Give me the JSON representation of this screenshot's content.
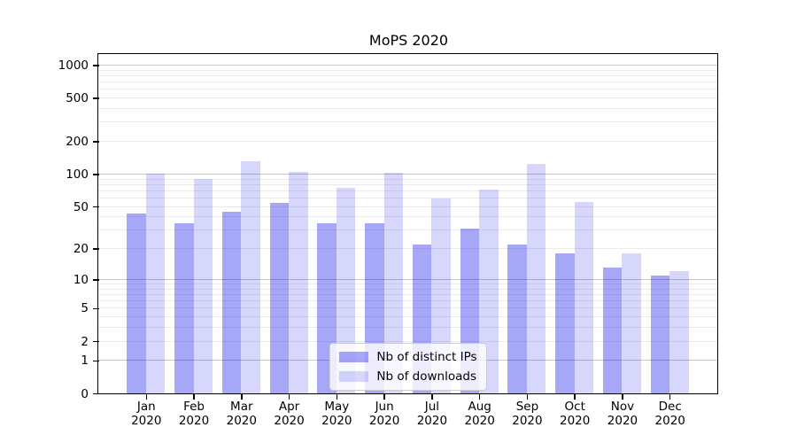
{
  "chart_data": {
    "type": "bar",
    "title": "MoPS 2020",
    "categories": [
      "Jan",
      "Feb",
      "Mar",
      "Apr",
      "May",
      "Jun",
      "Jul",
      "Aug",
      "Sep",
      "Oct",
      "Nov",
      "Dec"
    ],
    "x_year_line": "2020",
    "series": [
      {
        "name": "Nb of distinct IPs",
        "color": "rgba(0,0,235,0.345)",
        "values": [
          43,
          35,
          45,
          54,
          35,
          35,
          22,
          31,
          22,
          18,
          13,
          11
        ]
      },
      {
        "name": "Nb of downloads",
        "color": "rgba(0,0,235,0.155)",
        "values": [
          100,
          90,
          131,
          105,
          75,
          103,
          59,
          72,
          123,
          55,
          18,
          12
        ]
      }
    ],
    "yscale": "log1p",
    "ylim": [
      0,
      1260
    ],
    "yticks": [
      1000,
      500,
      200,
      100,
      50,
      20,
      10,
      5,
      2,
      1,
      0
    ],
    "grid": {
      "major_values": [
        1,
        10,
        100,
        1000
      ],
      "major_color": "#c6c6c6",
      "minor_color": "#ebebeb",
      "minor_on": true
    },
    "legend_position": "lower center",
    "bar_width_ratio": 0.4
  }
}
